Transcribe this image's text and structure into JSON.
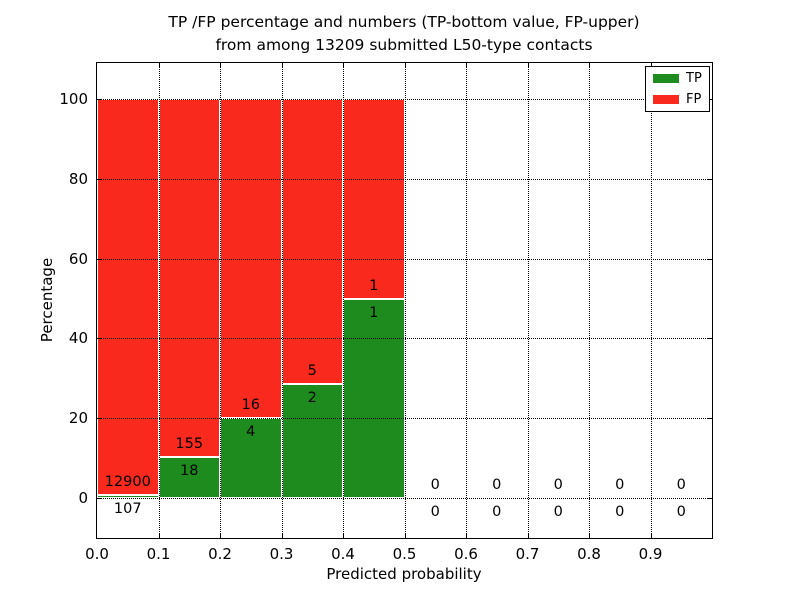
{
  "title": {
    "line1": "TP /FP percentage and numbers (TP-bottom value, FP-upper)",
    "line2": "from among 13209 submitted L50-type contacts"
  },
  "axes": {
    "xlabel": "Predicted probability",
    "ylabel": "Percentage",
    "x_tick_labels": [
      "0.0",
      "0.1",
      "0.2",
      "0.3",
      "0.4",
      "0.5",
      "0.6",
      "0.7",
      "0.8",
      "0.9"
    ],
    "x_tick_values": [
      0.0,
      0.1,
      0.2,
      0.3,
      0.4,
      0.5,
      0.6,
      0.7,
      0.8,
      0.9
    ],
    "y_tick_labels": [
      "0",
      "20",
      "40",
      "60",
      "80",
      "100"
    ],
    "y_tick_values": [
      0,
      20,
      40,
      60,
      80,
      100
    ]
  },
  "legend": {
    "items": [
      {
        "label": "TP",
        "color": "#1e8b1e"
      },
      {
        "label": "FP",
        "color": "#f92a1d"
      }
    ]
  },
  "colors": {
    "tp": "#1e8b1e",
    "fp": "#f92a1d",
    "grid": "#000000",
    "bar_edge": "#ffffff"
  },
  "chart_data": {
    "type": "bar",
    "stacked": true,
    "title": "TP /FP percentage and numbers (TP-bottom value, FP-upper) from among 13209 submitted L50-type contacts",
    "xlabel": "Predicted probability",
    "ylabel": "Percentage",
    "total_contacts": 13209,
    "bin_edges": [
      0.0,
      0.1,
      0.2,
      0.3,
      0.4,
      0.5,
      0.6,
      0.7,
      0.8,
      0.9,
      1.0
    ],
    "categories": [
      "0.0-0.1",
      "0.1-0.2",
      "0.2-0.3",
      "0.3-0.4",
      "0.4-0.5",
      "0.5-0.6",
      "0.6-0.7",
      "0.7-0.8",
      "0.8-0.9",
      "0.9-1.0"
    ],
    "series": [
      {
        "name": "TP",
        "color": "#1e8b1e",
        "counts": [
          107,
          18,
          4,
          2,
          1,
          0,
          0,
          0,
          0,
          0
        ],
        "percent": [
          0.82,
          10.4,
          20.0,
          28.57,
          50.0,
          0,
          0,
          0,
          0,
          0
        ]
      },
      {
        "name": "FP",
        "color": "#f92a1d",
        "counts": [
          12900,
          155,
          16,
          5,
          1,
          0,
          0,
          0,
          0,
          0
        ],
        "percent": [
          99.18,
          89.6,
          80.0,
          71.43,
          50.0,
          0,
          0,
          0,
          0,
          0
        ]
      }
    ],
    "annotation_rule": "FP count printed above TP bar top, TP count printed below it; zero bins show 0 above and 0 below the x-axis",
    "xlim": [
      0.0,
      1.0
    ],
    "ylim": [
      -10,
      109
    ],
    "grid": true,
    "grid_style": "dotted",
    "legend_position": "upper right"
  }
}
